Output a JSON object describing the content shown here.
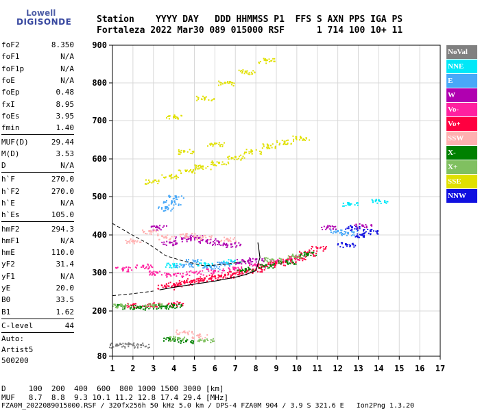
{
  "logo": {
    "line1": "Lowell",
    "line2": "DIGISONDE"
  },
  "header": {
    "line1": "Station    YYYY DAY   DDD HHMMSS P1  FFS S AXN PPS IGA PS",
    "line2": "Fortaleza 2022 Mar30 089 015000 RSF      1 714 100 10+ 11"
  },
  "params": {
    "group1": [
      {
        "name": "foF2",
        "value": "8.350"
      },
      {
        "name": "foF1",
        "value": "N/A"
      },
      {
        "name": "foF1p",
        "value": "N/A"
      },
      {
        "name": "foE",
        "value": "N/A"
      },
      {
        "name": "foEp",
        "value": "0.48"
      },
      {
        "name": "fxI",
        "value": "8.95"
      },
      {
        "name": "foEs",
        "value": "3.95"
      },
      {
        "name": "fmin",
        "value": "1.40"
      }
    ],
    "group2": [
      {
        "name": "MUF(D)",
        "value": "29.44"
      },
      {
        "name": "M(D)",
        "value": "3.53"
      },
      {
        "name": "D",
        "value": "N/A"
      }
    ],
    "group3": [
      {
        "name": "h`F",
        "value": "270.0"
      },
      {
        "name": "h`F2",
        "value": "270.0"
      },
      {
        "name": "h`E",
        "value": "N/A"
      },
      {
        "name": "h`Es",
        "value": "105.0"
      }
    ],
    "group4": [
      {
        "name": "hmF2",
        "value": "294.3"
      },
      {
        "name": "hmF1",
        "value": "N/A"
      },
      {
        "name": "hmE",
        "value": "110.0"
      },
      {
        "name": "yF2",
        "value": "31.4"
      },
      {
        "name": "yF1",
        "value": "N/A"
      },
      {
        "name": "yE",
        "value": "20.0"
      },
      {
        "name": "B0",
        "value": "33.5"
      },
      {
        "name": "B1",
        "value": "1.62"
      }
    ],
    "group5": [
      {
        "name": "C-level",
        "value": "44"
      }
    ],
    "auto": [
      "Auto:",
      "Artist5",
      "500200"
    ]
  },
  "footer": {
    "line1": "D     100  200  400  600  800 1000 1500 3000 [km]",
    "line2": "MUF   8.7  8.8  9.3 10.1 11.2 12.8 17.4 29.4 [MHz]",
    "line3": "FZA0M_2022089015000.RSF / 320fx256h 50 kHz 5.0 km / DPS-4 FZA0M 904 / 3.9 S 321.6 E   Ion2Png 1.3.20"
  },
  "legend": [
    {
      "label": "NoVal",
      "color": "#808080"
    },
    {
      "label": "NNE",
      "color": "#00e8f8"
    },
    {
      "label": "E",
      "color": "#48a8f8"
    },
    {
      "label": "W",
      "color": "#b000b0"
    },
    {
      "label": "Vo-",
      "color": "#ff20a0"
    },
    {
      "label": "Vo+",
      "color": "#ff0040"
    },
    {
      "label": "SSW",
      "color": "#ffb0b0"
    },
    {
      "label": "X-",
      "color": "#008000"
    },
    {
      "label": "X+",
      "color": "#80c060"
    },
    {
      "label": "SSE",
      "color": "#e0e000"
    },
    {
      "label": "NNW",
      "color": "#1010e0"
    }
  ],
  "chart_data": {
    "type": "scatter",
    "title": "",
    "xlabel": "",
    "ylabel": "",
    "xlim": [
      1,
      17
    ],
    "ylim": [
      80,
      900
    ],
    "xticks": [
      "1",
      "2",
      "3",
      "4",
      "5",
      "6",
      "7",
      "8",
      "9",
      "10",
      "11",
      "12",
      "13",
      "14",
      "15",
      "16",
      "17"
    ],
    "yticks": [
      "80",
      "200",
      "300",
      "400",
      "500",
      "600",
      "700",
      "800",
      "900"
    ],
    "grid": true,
    "series": [
      {
        "name": "NoVal",
        "color": "#808080",
        "points": [
          [
            1.2,
            110
          ],
          [
            1.8,
            112
          ],
          [
            2.4,
            110
          ]
        ]
      },
      {
        "name": "NNE",
        "color": "#00e8f8",
        "points": [
          [
            4.0,
            320
          ],
          [
            5.5,
            325
          ],
          [
            6.8,
            330
          ],
          [
            12.6,
            480
          ],
          [
            14.0,
            490
          ]
        ]
      },
      {
        "name": "E",
        "color": "#48a8f8",
        "points": [
          [
            3.6,
            470
          ],
          [
            3.9,
            485
          ],
          [
            4.1,
            500
          ],
          [
            4.5,
            320
          ],
          [
            5.0,
            330
          ],
          [
            5.8,
            315
          ],
          [
            6.4,
            325
          ],
          [
            12.0,
            410
          ],
          [
            12.5,
            405
          ]
        ]
      },
      {
        "name": "W",
        "color": "#b000b0",
        "points": [
          [
            3.2,
            420
          ],
          [
            3.8,
            380
          ],
          [
            4.4,
            390
          ],
          [
            5.0,
            395
          ],
          [
            5.6,
            385
          ],
          [
            6.2,
            380
          ],
          [
            6.8,
            375
          ],
          [
            7.4,
            330
          ],
          [
            8.0,
            335
          ],
          [
            11.5,
            420
          ],
          [
            13.2,
            425
          ]
        ]
      },
      {
        "name": "Vo-",
        "color": "#ff20a0",
        "points": [
          [
            1.5,
            310
          ],
          [
            2.5,
            318
          ],
          [
            3.2,
            300
          ],
          [
            4.0,
            295
          ],
          [
            5.0,
            300
          ],
          [
            6.0,
            305
          ],
          [
            7.0,
            312
          ],
          [
            8.0,
            320
          ],
          [
            9.0,
            330
          ],
          [
            10.0,
            340
          ]
        ]
      },
      {
        "name": "Vo+",
        "color": "#ff0040",
        "points": [
          [
            3.6,
            263
          ],
          [
            4.0,
            270
          ],
          [
            4.5,
            275
          ],
          [
            5.0,
            280
          ],
          [
            5.5,
            285
          ],
          [
            6.0,
            290
          ],
          [
            6.5,
            293
          ],
          [
            7.0,
            298
          ],
          [
            7.5,
            303
          ],
          [
            8.0,
            308
          ],
          [
            8.5,
            318
          ],
          [
            9.0,
            325
          ],
          [
            9.5,
            333
          ],
          [
            10.0,
            340
          ],
          [
            10.5,
            352
          ],
          [
            11.0,
            365
          ],
          [
            2.0,
            215
          ],
          [
            3.0,
            218
          ],
          [
            4.0,
            220
          ]
        ]
      },
      {
        "name": "SSW",
        "color": "#ffb0b0",
        "points": [
          [
            2.0,
            385
          ],
          [
            2.8,
            410
          ],
          [
            3.6,
            395
          ],
          [
            4.6,
            400
          ],
          [
            5.4,
            395
          ],
          [
            6.6,
            390
          ],
          [
            4.5,
            145
          ],
          [
            5.2,
            135
          ]
        ]
      },
      {
        "name": "X-",
        "color": "#008000",
        "points": [
          [
            1.6,
            212
          ],
          [
            2.4,
            210
          ],
          [
            3.4,
            212
          ],
          [
            4.0,
            215
          ],
          [
            3.8,
            125
          ],
          [
            4.6,
            120
          ],
          [
            7.5,
            310
          ],
          [
            8.5,
            320
          ],
          [
            9.5,
            330
          ],
          [
            10.5,
            350
          ]
        ]
      },
      {
        "name": "X+",
        "color": "#80c060",
        "points": [
          [
            1.4,
            215
          ],
          [
            3.0,
            216
          ],
          [
            4.2,
            128
          ],
          [
            5.5,
            122
          ],
          [
            8.8,
            335
          ],
          [
            9.8,
            345
          ]
        ]
      },
      {
        "name": "SSE",
        "color": "#e0e000",
        "points": [
          [
            3.0,
            540
          ],
          [
            3.8,
            555
          ],
          [
            4.6,
            568
          ],
          [
            5.4,
            580
          ],
          [
            6.2,
            590
          ],
          [
            7.0,
            605
          ],
          [
            7.8,
            620
          ],
          [
            8.6,
            635
          ],
          [
            9.4,
            645
          ],
          [
            10.2,
            655
          ],
          [
            4.0,
            710
          ],
          [
            5.5,
            760
          ],
          [
            6.5,
            800
          ],
          [
            7.5,
            830
          ],
          [
            8.5,
            860
          ],
          [
            4.5,
            620
          ],
          [
            6.0,
            640
          ]
        ]
      },
      {
        "name": "NNW",
        "color": "#1010e0",
        "points": [
          [
            12.4,
            375
          ],
          [
            12.7,
            420
          ],
          [
            13.2,
            400
          ],
          [
            13.6,
            410
          ]
        ]
      }
    ],
    "traces": {
      "profile_solid": [
        [
          3.3,
          255
        ],
        [
          4.0,
          262
        ],
        [
          5.0,
          270
        ],
        [
          6.0,
          278
        ],
        [
          7.0,
          288
        ],
        [
          7.5,
          295
        ],
        [
          8.0,
          305
        ],
        [
          8.2,
          340
        ],
        [
          8.1,
          380
        ]
      ],
      "profile_dashed": [
        [
          1.0,
          240
        ],
        [
          2.0,
          245
        ],
        [
          3.0,
          252
        ],
        [
          1.0,
          430
        ],
        [
          1.8,
          405
        ],
        [
          2.8,
          375
        ],
        [
          3.6,
          345
        ],
        [
          4.5,
          330
        ],
        [
          5.5,
          318
        ],
        [
          6.5,
          322
        ],
        [
          7.5,
          330
        ]
      ]
    }
  }
}
